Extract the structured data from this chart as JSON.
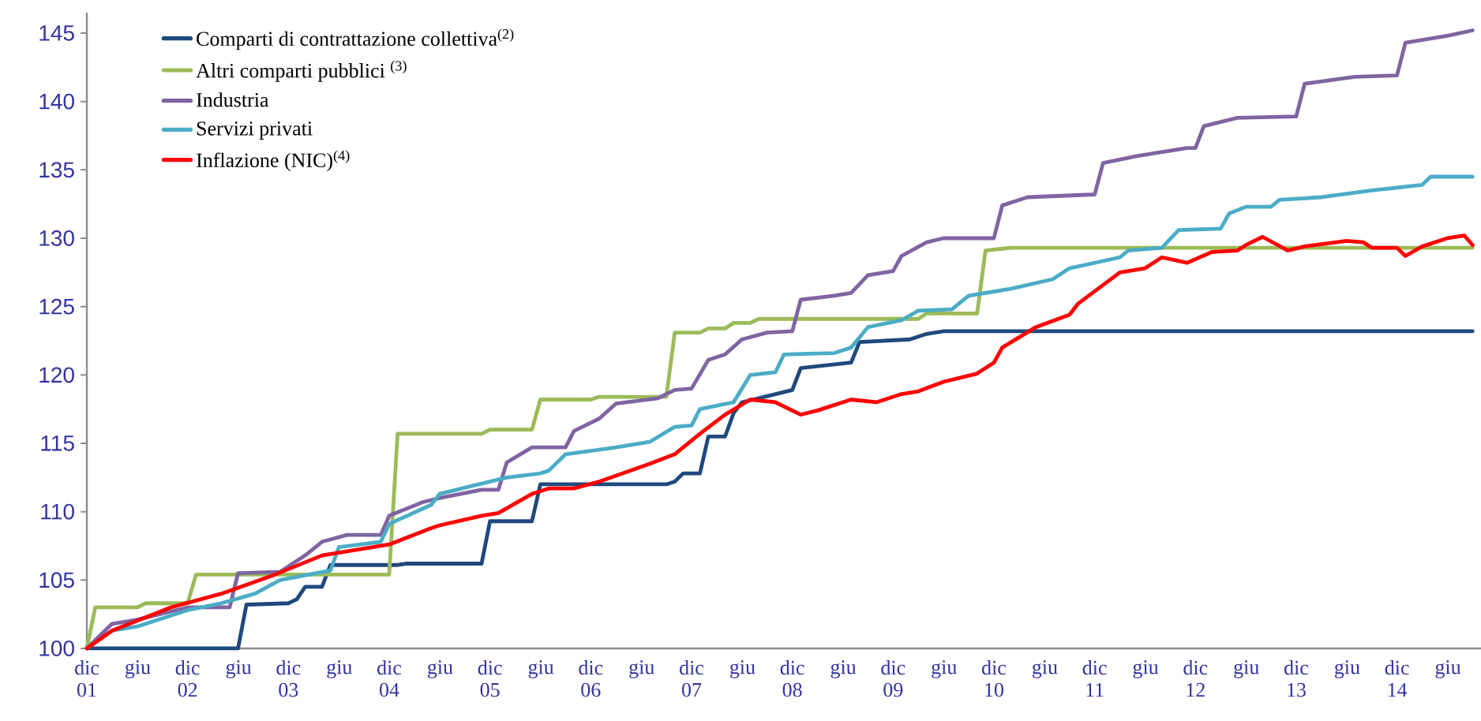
{
  "chart_data": {
    "type": "line",
    "xlim": [
      "2001-12",
      "2015-10"
    ],
    "ylim": [
      100,
      146.5
    ],
    "yticks": [
      100,
      105,
      110,
      115,
      120,
      125,
      130,
      135,
      140,
      145
    ],
    "xticks": [
      {
        "value": "2001-12",
        "label": "dic 01"
      },
      {
        "value": "2002-06",
        "label": "giu"
      },
      {
        "value": "2002-12",
        "label": "dic 02"
      },
      {
        "value": "2003-06",
        "label": "giu"
      },
      {
        "value": "2003-12",
        "label": "dic 03"
      },
      {
        "value": "2004-06",
        "label": "giu"
      },
      {
        "value": "2004-12",
        "label": "dic 04"
      },
      {
        "value": "2005-06",
        "label": "giu"
      },
      {
        "value": "2005-12",
        "label": "dic 05"
      },
      {
        "value": "2006-06",
        "label": "giu"
      },
      {
        "value": "2006-12",
        "label": "dic 06"
      },
      {
        "value": "2007-06",
        "label": "giu"
      },
      {
        "value": "2007-12",
        "label": "dic 07"
      },
      {
        "value": "2008-06",
        "label": "giu"
      },
      {
        "value": "2008-12",
        "label": "dic 08"
      },
      {
        "value": "2009-06",
        "label": "giu"
      },
      {
        "value": "2009-12",
        "label": "dic 09"
      },
      {
        "value": "2010-06",
        "label": "giu"
      },
      {
        "value": "2010-12",
        "label": "dic 10"
      },
      {
        "value": "2011-06",
        "label": "giu"
      },
      {
        "value": "2011-12",
        "label": "dic 11"
      },
      {
        "value": "2012-06",
        "label": "giu"
      },
      {
        "value": "2012-12",
        "label": "dic 12"
      },
      {
        "value": "2013-06",
        "label": "giu"
      },
      {
        "value": "2013-12",
        "label": "dic 13"
      },
      {
        "value": "2014-06",
        "label": "giu"
      },
      {
        "value": "2014-12",
        "label": "dic 14"
      },
      {
        "value": "2015-06",
        "label": "giu"
      }
    ],
    "legend": "top left",
    "grid": false,
    "series": [
      {
        "name": "Comparti di contrattazione collettiva$^{(2)}$",
        "color": "#1f497d",
        "x": [
          "2001-12",
          "2003-06",
          "2003-07",
          "2003-12",
          "2004-01",
          "2004-02",
          "2004-04",
          "2004-05",
          "2005-01",
          "2005-02",
          "2005-11",
          "2005-12",
          "2006-05",
          "2006-06",
          "2007-09",
          "2007-10",
          "2007-11",
          "2008-01",
          "2008-02",
          "2008-04",
          "2008-05",
          "2008-06",
          "2008-10",
          "2008-12",
          "2009-01",
          "2009-07",
          "2009-08",
          "2010-02",
          "2010-04",
          "2010-06",
          "2015-09"
        ],
        "values": [
          100,
          100,
          103.2,
          103.3,
          103.6,
          104.5,
          104.5,
          106.1,
          106.1,
          106.2,
          106.2,
          109.3,
          109.3,
          112.0,
          112.0,
          112.2,
          112.8,
          112.8,
          115.5,
          115.5,
          117.2,
          118.0,
          118.6,
          118.9,
          120.5,
          120.9,
          122.4,
          122.6,
          123.0,
          123.2,
          123.2
        ]
      },
      {
        "name": "Altri comparti pubblici $^{(3)}$",
        "color": "#9bbb59",
        "x": [
          "2001-12",
          "2002-01",
          "2002-06",
          "2002-07",
          "2002-12",
          "2003-01",
          "2004-12",
          "2005-01",
          "2005-11",
          "2005-12",
          "2006-05",
          "2006-06",
          "2006-12",
          "2007-01",
          "2007-09",
          "2007-10",
          "2008-01",
          "2008-02",
          "2008-04",
          "2008-05",
          "2008-07",
          "2008-08",
          "2010-03",
          "2010-04",
          "2010-10",
          "2010-11",
          "2011-02",
          "2015-09"
        ],
        "values": [
          100,
          103.0,
          103.0,
          103.3,
          103.3,
          105.4,
          105.4,
          115.7,
          115.7,
          116.0,
          116.0,
          118.2,
          118.2,
          118.4,
          118.4,
          123.1,
          123.1,
          123.4,
          123.4,
          123.8,
          123.8,
          124.1,
          124.1,
          124.5,
          124.5,
          129.1,
          129.3,
          129.3
        ]
      },
      {
        "name": "Industria",
        "color": "#8064a2",
        "x": [
          "2001-12",
          "2002-03",
          "2002-06",
          "2002-12",
          "2003-05",
          "2003-06",
          "2003-11",
          "2004-02",
          "2004-04",
          "2004-07",
          "2004-11",
          "2004-12",
          "2005-04",
          "2005-06",
          "2005-11",
          "2006-01",
          "2006-02",
          "2006-05",
          "2006-09",
          "2006-10",
          "2007-01",
          "2007-03",
          "2007-08",
          "2007-10",
          "2007-12",
          "2008-02",
          "2008-04",
          "2008-06",
          "2008-09",
          "2008-12",
          "2009-01",
          "2009-05",
          "2009-07",
          "2009-09",
          "2009-12",
          "2010-01",
          "2010-04",
          "2010-06",
          "2010-12",
          "2011-01",
          "2011-04",
          "2011-12",
          "2012-01",
          "2012-05",
          "2012-11",
          "2012-12",
          "2013-01",
          "2013-05",
          "2013-12",
          "2014-01",
          "2014-07",
          "2014-12",
          "2015-01",
          "2015-06",
          "2015-09"
        ],
        "values": [
          100,
          101.8,
          102.1,
          103.0,
          103.0,
          105.5,
          105.6,
          106.8,
          107.8,
          108.3,
          108.3,
          109.7,
          110.7,
          111.0,
          111.6,
          111.6,
          113.6,
          114.7,
          114.7,
          115.9,
          116.8,
          117.9,
          118.3,
          118.9,
          119.0,
          121.1,
          121.5,
          122.6,
          123.1,
          123.2,
          125.5,
          125.8,
          126.0,
          127.3,
          127.6,
          128.7,
          129.7,
          130.0,
          130.0,
          132.4,
          133.0,
          133.2,
          135.5,
          136.0,
          136.6,
          136.6,
          138.2,
          138.8,
          138.9,
          141.3,
          141.8,
          141.9,
          144.3,
          144.8,
          145.2
        ]
      },
      {
        "name": "Servizi privati",
        "color": "#4bacc6",
        "x": [
          "2001-12",
          "2002-03",
          "2002-06",
          "2002-12",
          "2003-04",
          "2003-08",
          "2003-11",
          "2004-05",
          "2004-06",
          "2004-11",
          "2004-12",
          "2005-05",
          "2005-06",
          "2005-10",
          "2006-02",
          "2006-06",
          "2006-07",
          "2006-09",
          "2007-03",
          "2007-07",
          "2007-10",
          "2007-12",
          "2008-01",
          "2008-05",
          "2008-07",
          "2008-10",
          "2008-11",
          "2009-05",
          "2009-07",
          "2009-09",
          "2010-01",
          "2010-03",
          "2010-07",
          "2010-09",
          "2011-02",
          "2011-07",
          "2011-09",
          "2012-03",
          "2012-04",
          "2012-08",
          "2012-10",
          "2013-03",
          "2013-04",
          "2013-06",
          "2013-09",
          "2013-10",
          "2014-03",
          "2014-09",
          "2015-03",
          "2015-04",
          "2015-09"
        ],
        "values": [
          100,
          101.3,
          101.6,
          102.8,
          103.3,
          104.0,
          105.0,
          105.7,
          107.4,
          107.8,
          109.1,
          110.5,
          111.3,
          111.9,
          112.5,
          112.8,
          113.0,
          114.2,
          114.7,
          115.1,
          116.2,
          116.3,
          117.5,
          118.0,
          120.0,
          120.2,
          121.5,
          121.6,
          122.0,
          123.5,
          124.0,
          124.7,
          124.8,
          125.8,
          126.3,
          127.0,
          127.8,
          128.6,
          129.1,
          129.3,
          130.6,
          130.7,
          131.8,
          132.3,
          132.3,
          132.8,
          133.0,
          133.5,
          133.9,
          134.5,
          134.5
        ]
      },
      {
        "name": "Inflazione (NIC)$^{(4)}$",
        "color": "#ff0000",
        "x": [
          "2001-12",
          "2002-03",
          "2002-10",
          "2003-04",
          "2003-10",
          "2004-04",
          "2004-12",
          "2005-05",
          "2005-06",
          "2005-11",
          "2006-01",
          "2006-05",
          "2006-07",
          "2006-10",
          "2007-01",
          "2007-07",
          "2007-10",
          "2008-01",
          "2008-04",
          "2008-07",
          "2008-10",
          "2009-01",
          "2009-03",
          "2009-07",
          "2009-10",
          "2010-01",
          "2010-03",
          "2010-06",
          "2010-10",
          "2010-12",
          "2011-01",
          "2011-05",
          "2011-09",
          "2011-10",
          "2012-03",
          "2012-06",
          "2012-08",
          "2012-11",
          "2013-02",
          "2013-05",
          "2013-06",
          "2013-08",
          "2013-11",
          "2014-01",
          "2014-06",
          "2014-08",
          "2014-09",
          "2014-12",
          "2015-01",
          "2015-03",
          "2015-06",
          "2015-08",
          "2015-09"
        ],
        "values": [
          100,
          101.3,
          103.0,
          104.0,
          105.3,
          106.8,
          107.6,
          108.8,
          109.0,
          109.7,
          109.9,
          111.3,
          111.7,
          111.7,
          112.2,
          113.5,
          114.2,
          115.7,
          117.1,
          118.2,
          118.0,
          117.1,
          117.4,
          118.2,
          118.0,
          118.6,
          118.8,
          119.5,
          120.1,
          120.9,
          122.0,
          123.5,
          124.4,
          125.2,
          127.5,
          127.8,
          128.6,
          128.2,
          129.0,
          129.1,
          129.5,
          130.1,
          129.1,
          129.4,
          129.8,
          129.7,
          129.3,
          129.3,
          128.7,
          129.4,
          130.0,
          130.2,
          129.5
        ]
      }
    ]
  }
}
